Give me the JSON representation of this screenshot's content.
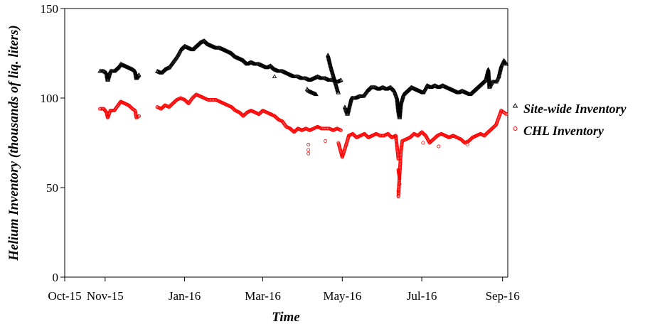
{
  "chart_data": {
    "type": "scatter",
    "title": "",
    "xlabel": "Time",
    "ylabel": "Helium Inventory  (thousands of liq. liters)",
    "ylim": [
      0,
      150
    ],
    "yticks": [
      "0",
      "50",
      "100",
      "150"
    ],
    "xlim": [
      "2015-10-01",
      "2016-09-05"
    ],
    "xticks": [
      {
        "date": "2015-10-01",
        "label": "Oct-15"
      },
      {
        "date": "2015-11-01",
        "label": "Nov-15"
      },
      {
        "date": "2016-01-01",
        "label": "Jan-16"
      },
      {
        "date": "2016-03-01",
        "label": "Mar-16"
      },
      {
        "date": "2016-05-01",
        "label": "May-16"
      },
      {
        "date": "2016-07-01",
        "label": "Jul-16"
      },
      {
        "date": "2016-09-01",
        "label": "Sep-16"
      }
    ],
    "grid": false,
    "legend_position": "right",
    "colors": {
      "site": "#000000",
      "chl": "#ff0000"
    },
    "series": [
      {
        "name": "Site-wide Inventory",
        "marker": "triangle",
        "color": "#000000",
        "points": [
          [
            "2015-10-28",
            115
          ],
          [
            "2015-10-31",
            115
          ],
          [
            "2015-11-02",
            114
          ],
          [
            "2015-11-03",
            110
          ],
          [
            "2015-11-05",
            115
          ],
          [
            "2015-11-08",
            115
          ],
          [
            "2015-11-11",
            117
          ],
          [
            "2015-11-13",
            119
          ],
          [
            "2015-11-16",
            118
          ],
          [
            "2015-11-19",
            117
          ],
          [
            "2015-11-22",
            116
          ],
          [
            "2015-11-24",
            115
          ],
          [
            "2015-11-25",
            111
          ],
          [
            "2015-11-27",
            113
          ],
          [
            "2015-12-11",
            115
          ],
          [
            "2015-12-14",
            114
          ],
          [
            "2015-12-17",
            116
          ],
          [
            "2015-12-20",
            117
          ],
          [
            "2015-12-23",
            120
          ],
          [
            "2015-12-26",
            123
          ],
          [
            "2015-12-29",
            127
          ],
          [
            "2016-01-01",
            129
          ],
          [
            "2016-01-04",
            128
          ],
          [
            "2016-01-07",
            127
          ],
          [
            "2016-01-10",
            129
          ],
          [
            "2016-01-13",
            131
          ],
          [
            "2016-01-16",
            132
          ],
          [
            "2016-01-19",
            130
          ],
          [
            "2016-01-22",
            129
          ],
          [
            "2016-01-25",
            128
          ],
          [
            "2016-01-28",
            128
          ],
          [
            "2016-01-31",
            127
          ],
          [
            "2016-02-03",
            126
          ],
          [
            "2016-02-06",
            125
          ],
          [
            "2016-02-09",
            123
          ],
          [
            "2016-02-12",
            122
          ],
          [
            "2016-02-15",
            121
          ],
          [
            "2016-02-18",
            119
          ],
          [
            "2016-02-21",
            120
          ],
          [
            "2016-02-24",
            119
          ],
          [
            "2016-02-27",
            119
          ],
          [
            "2016-03-01",
            118
          ],
          [
            "2016-03-04",
            117
          ],
          [
            "2016-03-07",
            118
          ],
          [
            "2016-03-10",
            116
          ],
          [
            "2016-03-13",
            115
          ],
          [
            "2016-03-16",
            115
          ],
          [
            "2016-03-19",
            114
          ],
          [
            "2016-03-22",
            113
          ],
          [
            "2016-03-25",
            112
          ],
          [
            "2016-03-28",
            112
          ],
          [
            "2016-03-31",
            111
          ],
          [
            "2016-04-03",
            111
          ],
          [
            "2016-04-06",
            110
          ],
          [
            "2016-04-09",
            111
          ],
          [
            "2016-04-12",
            112
          ],
          [
            "2016-04-15",
            111
          ],
          [
            "2016-04-18",
            111
          ],
          [
            "2016-04-21",
            110
          ],
          [
            "2016-04-24",
            110
          ],
          [
            "2016-04-27",
            109
          ],
          [
            "2016-04-30",
            110
          ],
          [
            "2016-04-04",
            105
          ],
          [
            "2016-04-05",
            104
          ],
          [
            "2016-04-11",
            102
          ],
          [
            "2016-04-20",
            124
          ],
          [
            "2016-04-21",
            121
          ],
          [
            "2016-04-22",
            118
          ],
          [
            "2016-04-28",
            103
          ],
          [
            "2016-03-10",
            112
          ],
          [
            "2016-05-03",
            95
          ],
          [
            "2016-05-05",
            91
          ],
          [
            "2016-05-08",
            100
          ],
          [
            "2016-05-11",
            100
          ],
          [
            "2016-05-14",
            101
          ],
          [
            "2016-05-17",
            101
          ],
          [
            "2016-05-20",
            104
          ],
          [
            "2016-05-23",
            106
          ],
          [
            "2016-05-26",
            106
          ],
          [
            "2016-05-29",
            105
          ],
          [
            "2016-06-01",
            106
          ],
          [
            "2016-06-04",
            105
          ],
          [
            "2016-06-07",
            106
          ],
          [
            "2016-06-10",
            104
          ],
          [
            "2016-06-12",
            100
          ],
          [
            "2016-06-13",
            93
          ],
          [
            "2016-06-14",
            89
          ],
          [
            "2016-06-15",
            97
          ],
          [
            "2016-06-17",
            102
          ],
          [
            "2016-06-20",
            104
          ],
          [
            "2016-06-23",
            106
          ],
          [
            "2016-06-26",
            105
          ],
          [
            "2016-06-29",
            104
          ],
          [
            "2016-07-02",
            103
          ],
          [
            "2016-07-05",
            107
          ],
          [
            "2016-07-08",
            106
          ],
          [
            "2016-07-11",
            107
          ],
          [
            "2016-07-14",
            106
          ],
          [
            "2016-07-17",
            107
          ],
          [
            "2016-07-20",
            106
          ],
          [
            "2016-07-23",
            105
          ],
          [
            "2016-07-26",
            104
          ],
          [
            "2016-07-29",
            103
          ],
          [
            "2016-08-01",
            104
          ],
          [
            "2016-08-04",
            103
          ],
          [
            "2016-08-07",
            102
          ],
          [
            "2016-08-10",
            104
          ],
          [
            "2016-08-13",
            106
          ],
          [
            "2016-08-16",
            108
          ],
          [
            "2016-08-19",
            110
          ],
          [
            "2016-08-21",
            116
          ],
          [
            "2016-08-22",
            106
          ],
          [
            "2016-08-24",
            109
          ],
          [
            "2016-08-27",
            109
          ],
          [
            "2016-08-29",
            112
          ],
          [
            "2016-08-31",
            118
          ],
          [
            "2016-09-02",
            121
          ],
          [
            "2016-09-04",
            119
          ]
        ]
      },
      {
        "name": "CHL Inventory",
        "marker": "circle",
        "color": "#ff0000",
        "points": [
          [
            "2015-10-28",
            94
          ],
          [
            "2015-10-31",
            94
          ],
          [
            "2015-11-02",
            92
          ],
          [
            "2015-11-03",
            89
          ],
          [
            "2015-11-05",
            93
          ],
          [
            "2015-11-08",
            93
          ],
          [
            "2015-11-11",
            96
          ],
          [
            "2015-11-13",
            98
          ],
          [
            "2015-11-16",
            97
          ],
          [
            "2015-11-19",
            96
          ],
          [
            "2015-11-22",
            94
          ],
          [
            "2015-11-24",
            93
          ],
          [
            "2015-11-25",
            89
          ],
          [
            "2015-11-27",
            90
          ],
          [
            "2015-12-11",
            95
          ],
          [
            "2015-12-14",
            94
          ],
          [
            "2015-12-17",
            96
          ],
          [
            "2015-12-20",
            95
          ],
          [
            "2015-12-23",
            97
          ],
          [
            "2015-12-26",
            99
          ],
          [
            "2015-12-29",
            100
          ],
          [
            "2016-01-01",
            99
          ],
          [
            "2016-01-04",
            97
          ],
          [
            "2016-01-07",
            100
          ],
          [
            "2016-01-10",
            102
          ],
          [
            "2016-01-13",
            101
          ],
          [
            "2016-01-16",
            100
          ],
          [
            "2016-01-19",
            99
          ],
          [
            "2016-01-22",
            99
          ],
          [
            "2016-01-25",
            99
          ],
          [
            "2016-01-28",
            98
          ],
          [
            "2016-01-31",
            97
          ],
          [
            "2016-02-03",
            96
          ],
          [
            "2016-02-06",
            95
          ],
          [
            "2016-02-09",
            93
          ],
          [
            "2016-02-12",
            92
          ],
          [
            "2016-02-15",
            90
          ],
          [
            "2016-02-18",
            92
          ],
          [
            "2016-02-21",
            93
          ],
          [
            "2016-02-24",
            92
          ],
          [
            "2016-02-27",
            91
          ],
          [
            "2016-03-01",
            93
          ],
          [
            "2016-03-04",
            92
          ],
          [
            "2016-03-07",
            91
          ],
          [
            "2016-03-10",
            90
          ],
          [
            "2016-03-13",
            88
          ],
          [
            "2016-03-16",
            87
          ],
          [
            "2016-03-19",
            84
          ],
          [
            "2016-03-22",
            83
          ],
          [
            "2016-03-25",
            81
          ],
          [
            "2016-03-28",
            83
          ],
          [
            "2016-03-31",
            82
          ],
          [
            "2016-04-03",
            83
          ],
          [
            "2016-04-06",
            82
          ],
          [
            "2016-04-09",
            83
          ],
          [
            "2016-04-12",
            84
          ],
          [
            "2016-04-15",
            83
          ],
          [
            "2016-04-18",
            83
          ],
          [
            "2016-04-21",
            83
          ],
          [
            "2016-04-24",
            82
          ],
          [
            "2016-04-27",
            83
          ],
          [
            "2016-04-30",
            82
          ],
          [
            "2016-04-05",
            74
          ],
          [
            "2016-04-05",
            71
          ],
          [
            "2016-04-05",
            69
          ],
          [
            "2016-04-18",
            76
          ],
          [
            "2016-04-28",
            75
          ],
          [
            "2016-05-01",
            67
          ],
          [
            "2016-05-04",
            74
          ],
          [
            "2016-05-06",
            79
          ],
          [
            "2016-05-09",
            80
          ],
          [
            "2016-05-12",
            78
          ],
          [
            "2016-05-15",
            79
          ],
          [
            "2016-05-18",
            80
          ],
          [
            "2016-05-21",
            78
          ],
          [
            "2016-05-24",
            79
          ],
          [
            "2016-05-27",
            80
          ],
          [
            "2016-05-30",
            79
          ],
          [
            "2016-06-02",
            79
          ],
          [
            "2016-06-05",
            80
          ],
          [
            "2016-06-08",
            78
          ],
          [
            "2016-06-11",
            79
          ],
          [
            "2016-06-12",
            73
          ],
          [
            "2016-06-13",
            66
          ],
          [
            "2016-06-13",
            60
          ],
          [
            "2016-06-14",
            55
          ],
          [
            "2016-06-14",
            52
          ],
          [
            "2016-06-13",
            48
          ],
          [
            "2016-06-13",
            45
          ],
          [
            "2016-06-15",
            70
          ],
          [
            "2016-06-16",
            76
          ],
          [
            "2016-06-19",
            77
          ],
          [
            "2016-06-22",
            78
          ],
          [
            "2016-06-25",
            80
          ],
          [
            "2016-06-28",
            79
          ],
          [
            "2016-07-01",
            81
          ],
          [
            "2016-07-04",
            79
          ],
          [
            "2016-07-07",
            75
          ],
          [
            "2016-07-10",
            77
          ],
          [
            "2016-07-13",
            79
          ],
          [
            "2016-07-16",
            80
          ],
          [
            "2016-07-19",
            79
          ],
          [
            "2016-07-22",
            78
          ],
          [
            "2016-07-25",
            79
          ],
          [
            "2016-07-28",
            78
          ],
          [
            "2016-07-31",
            77
          ],
          [
            "2016-08-03",
            75
          ],
          [
            "2016-08-06",
            76
          ],
          [
            "2016-08-09",
            78
          ],
          [
            "2016-08-12",
            79
          ],
          [
            "2016-08-15",
            80
          ],
          [
            "2016-08-18",
            79
          ],
          [
            "2016-08-21",
            81
          ],
          [
            "2016-08-24",
            83
          ],
          [
            "2016-08-27",
            85
          ],
          [
            "2016-08-29",
            89
          ],
          [
            "2016-08-31",
            93
          ],
          [
            "2016-09-02",
            92
          ],
          [
            "2016-09-04",
            91
          ],
          [
            "2016-07-02",
            75
          ],
          [
            "2016-07-14",
            73
          ],
          [
            "2016-08-05",
            74
          ]
        ]
      }
    ]
  }
}
